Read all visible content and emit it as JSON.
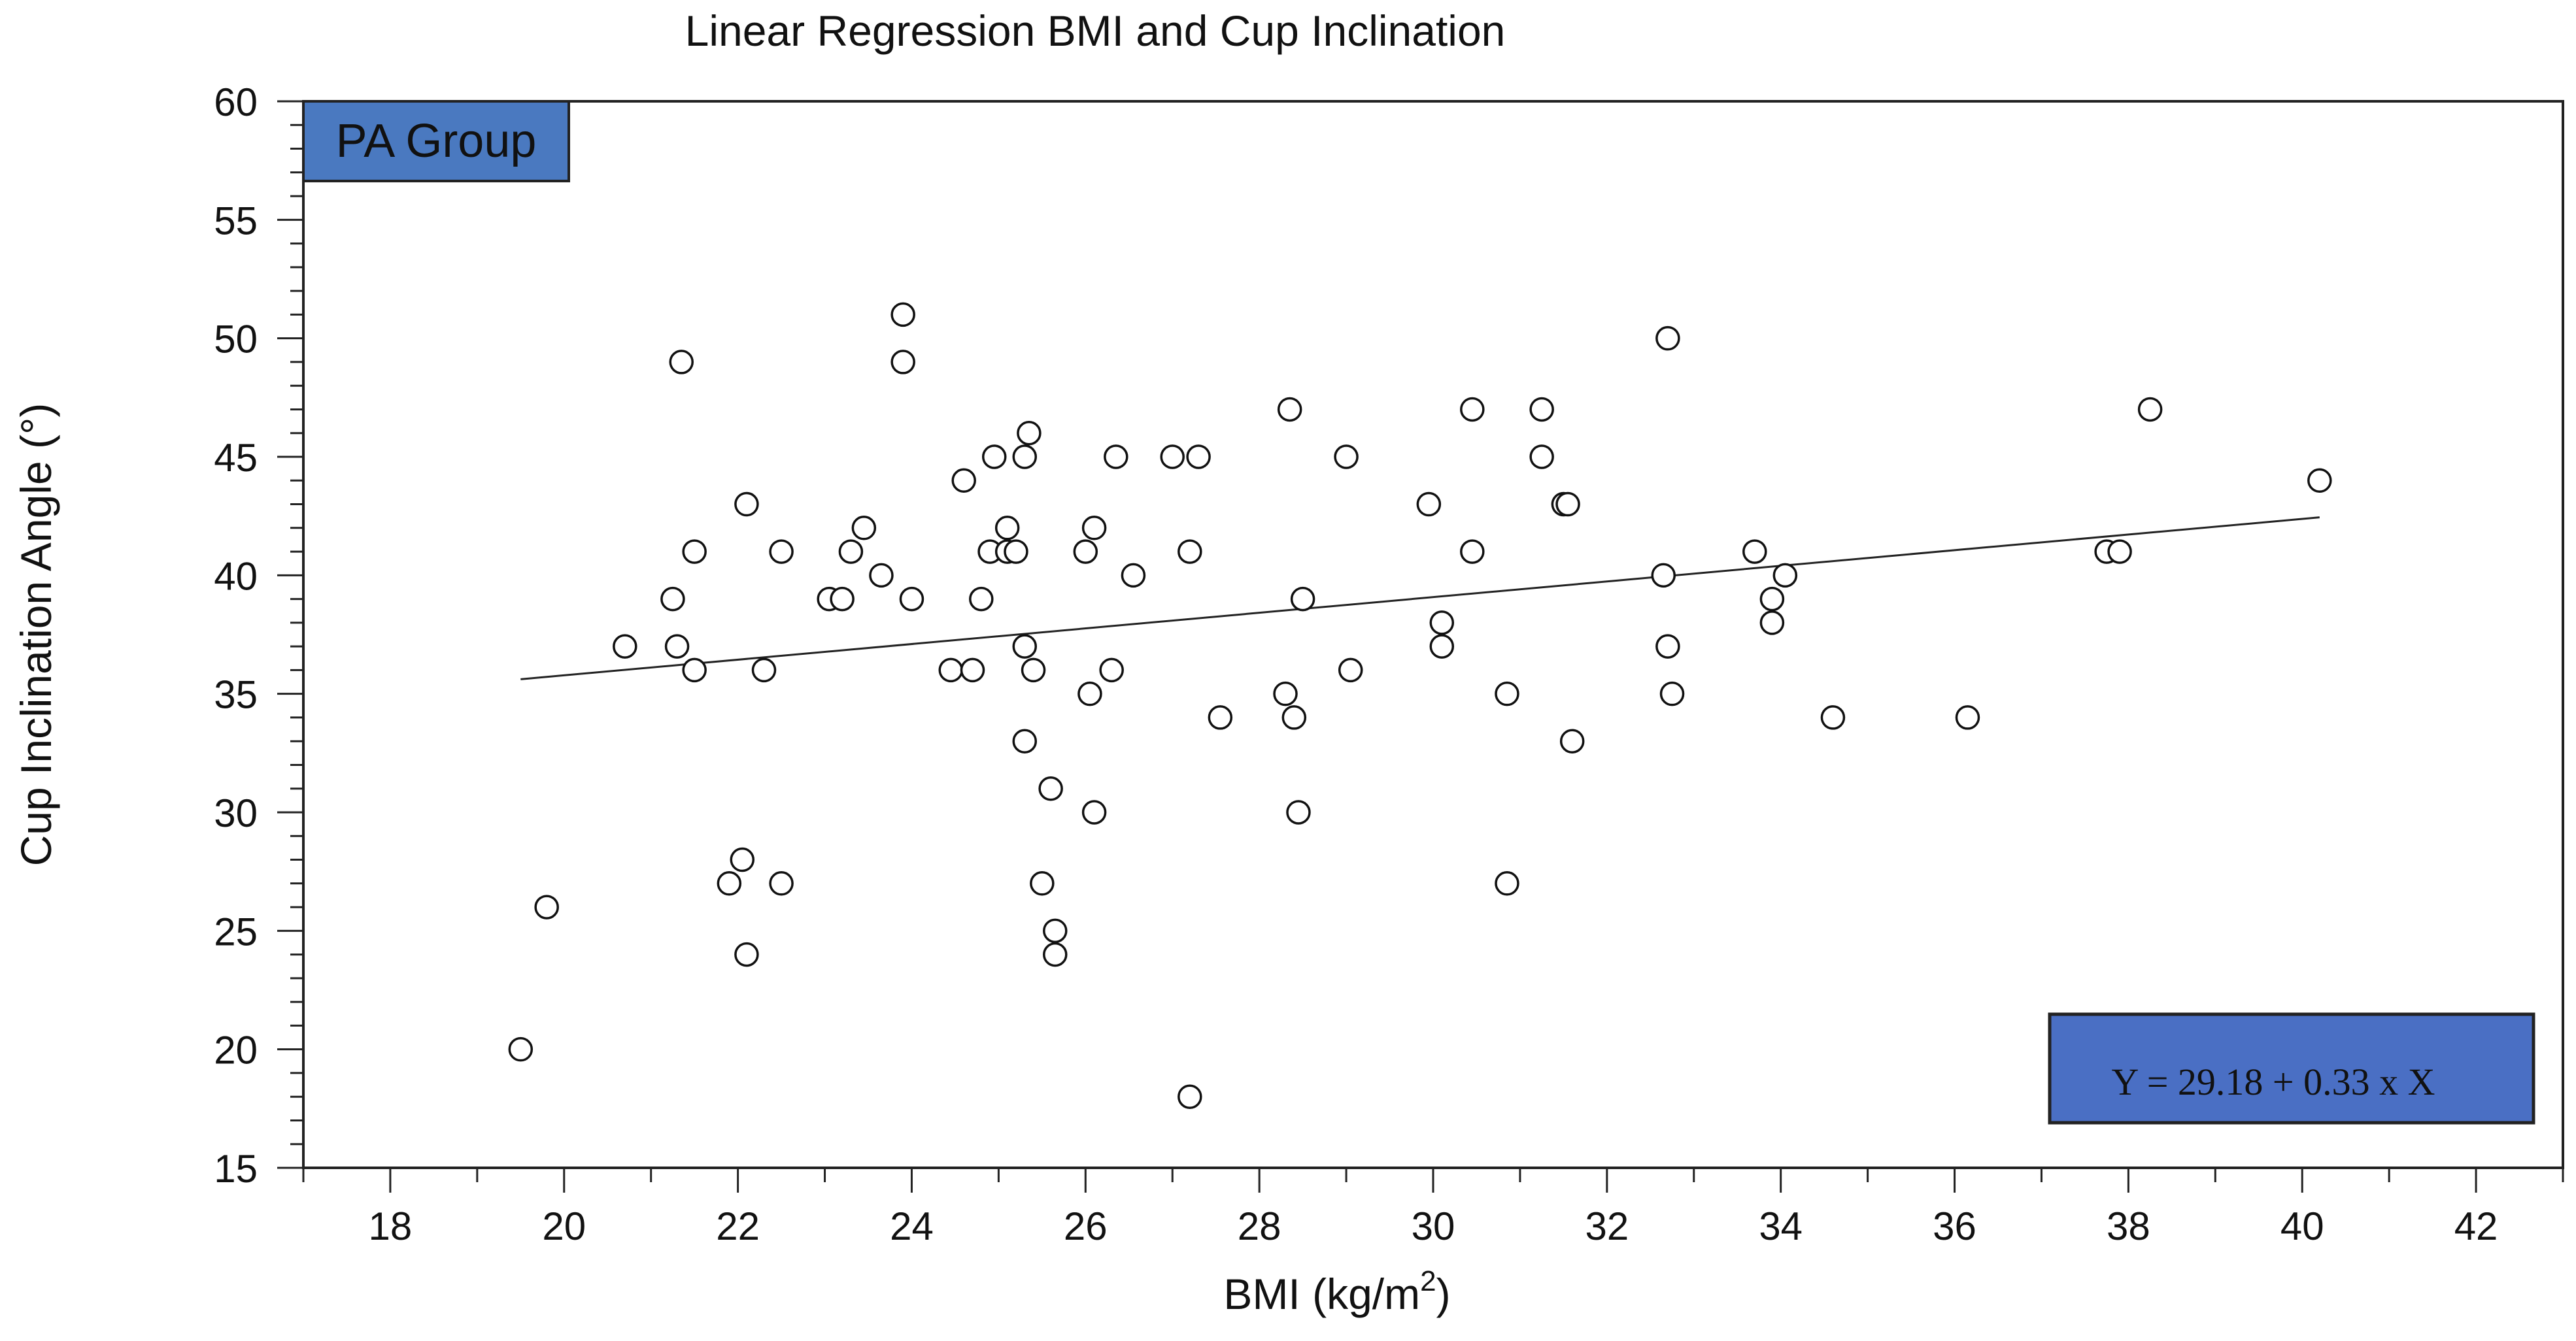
{
  "chart_data": {
    "type": "scatter",
    "title": "Linear Regression BMI and Cup Inclination",
    "xlabel": "BMI (kg/m",
    "xlabel_sup": "2",
    "xlabel_end": ")",
    "ylabel": "Cup Inclination Angle (°)",
    "group_label": "PA Group",
    "equation": "Y = 29.18 + 0.33 x X",
    "xlim": [
      17,
      43
    ],
    "ylim": [
      15,
      60
    ],
    "x_ticks": [
      18,
      20,
      22,
      24,
      26,
      28,
      30,
      32,
      34,
      36,
      38,
      40,
      42
    ],
    "y_ticks": [
      15,
      20,
      25,
      30,
      35,
      40,
      45,
      50,
      55,
      60
    ],
    "regression": {
      "intercept": 29.18,
      "slope": 0.33,
      "x_range": [
        19.5,
        40.2
      ]
    },
    "colors": {
      "label_box": "#4a79c0",
      "equation_box": "#4a6fc4",
      "marker": "#111111",
      "axis": "#222222"
    },
    "points": [
      {
        "x": 19.5,
        "y": 20
      },
      {
        "x": 19.8,
        "y": 26
      },
      {
        "x": 20.7,
        "y": 37
      },
      {
        "x": 21.25,
        "y": 39
      },
      {
        "x": 21.3,
        "y": 37
      },
      {
        "x": 21.35,
        "y": 49
      },
      {
        "x": 21.5,
        "y": 41
      },
      {
        "x": 21.5,
        "y": 36
      },
      {
        "x": 21.9,
        "y": 27
      },
      {
        "x": 22.05,
        "y": 28
      },
      {
        "x": 22.1,
        "y": 43
      },
      {
        "x": 22.1,
        "y": 24
      },
      {
        "x": 22.3,
        "y": 36
      },
      {
        "x": 22.5,
        "y": 41
      },
      {
        "x": 22.5,
        "y": 27
      },
      {
        "x": 23.05,
        "y": 39
      },
      {
        "x": 23.2,
        "y": 39
      },
      {
        "x": 23.3,
        "y": 41
      },
      {
        "x": 23.45,
        "y": 42
      },
      {
        "x": 23.65,
        "y": 40
      },
      {
        "x": 23.9,
        "y": 51
      },
      {
        "x": 23.9,
        "y": 49
      },
      {
        "x": 24.0,
        "y": 39
      },
      {
        "x": 24.45,
        "y": 36
      },
      {
        "x": 24.6,
        "y": 44
      },
      {
        "x": 24.7,
        "y": 36
      },
      {
        "x": 24.8,
        "y": 39
      },
      {
        "x": 24.9,
        "y": 41
      },
      {
        "x": 24.95,
        "y": 45
      },
      {
        "x": 25.1,
        "y": 42
      },
      {
        "x": 25.1,
        "y": 41
      },
      {
        "x": 25.2,
        "y": 41
      },
      {
        "x": 25.3,
        "y": 45
      },
      {
        "x": 25.3,
        "y": 37
      },
      {
        "x": 25.3,
        "y": 33
      },
      {
        "x": 25.35,
        "y": 46
      },
      {
        "x": 25.4,
        "y": 36
      },
      {
        "x": 25.5,
        "y": 27
      },
      {
        "x": 25.6,
        "y": 31
      },
      {
        "x": 25.65,
        "y": 25
      },
      {
        "x": 25.65,
        "y": 24
      },
      {
        "x": 26.0,
        "y": 41
      },
      {
        "x": 26.05,
        "y": 35
      },
      {
        "x": 26.1,
        "y": 42
      },
      {
        "x": 26.1,
        "y": 30
      },
      {
        "x": 26.3,
        "y": 36
      },
      {
        "x": 26.35,
        "y": 45
      },
      {
        "x": 26.55,
        "y": 40
      },
      {
        "x": 27.0,
        "y": 45
      },
      {
        "x": 27.2,
        "y": 41
      },
      {
        "x": 27.2,
        "y": 18
      },
      {
        "x": 27.3,
        "y": 45
      },
      {
        "x": 27.55,
        "y": 34
      },
      {
        "x": 28.3,
        "y": 35
      },
      {
        "x": 28.35,
        "y": 47
      },
      {
        "x": 28.4,
        "y": 34
      },
      {
        "x": 28.45,
        "y": 30
      },
      {
        "x": 28.5,
        "y": 39
      },
      {
        "x": 29.0,
        "y": 45
      },
      {
        "x": 29.05,
        "y": 36
      },
      {
        "x": 29.95,
        "y": 43
      },
      {
        "x": 30.1,
        "y": 38
      },
      {
        "x": 30.1,
        "y": 37
      },
      {
        "x": 30.45,
        "y": 47
      },
      {
        "x": 30.45,
        "y": 41
      },
      {
        "x": 30.85,
        "y": 35
      },
      {
        "x": 30.85,
        "y": 27
      },
      {
        "x": 31.25,
        "y": 47
      },
      {
        "x": 31.25,
        "y": 45
      },
      {
        "x": 31.5,
        "y": 43
      },
      {
        "x": 31.55,
        "y": 43
      },
      {
        "x": 31.6,
        "y": 33
      },
      {
        "x": 32.65,
        "y": 40
      },
      {
        "x": 32.7,
        "y": 50
      },
      {
        "x": 32.7,
        "y": 37
      },
      {
        "x": 32.75,
        "y": 35
      },
      {
        "x": 33.7,
        "y": 41
      },
      {
        "x": 33.9,
        "y": 39
      },
      {
        "x": 33.9,
        "y": 38
      },
      {
        "x": 34.05,
        "y": 40
      },
      {
        "x": 34.6,
        "y": 34
      },
      {
        "x": 36.15,
        "y": 34
      },
      {
        "x": 37.75,
        "y": 41
      },
      {
        "x": 37.9,
        "y": 41
      },
      {
        "x": 38.25,
        "y": 47
      },
      {
        "x": 40.2,
        "y": 44
      }
    ]
  }
}
